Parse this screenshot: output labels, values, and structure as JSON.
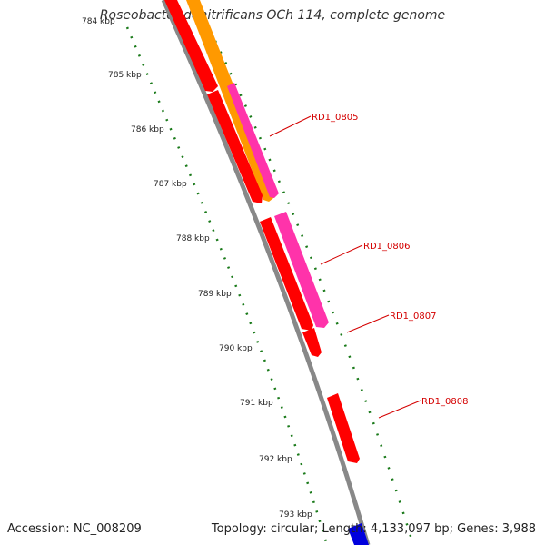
{
  "title": "Roseobacter denitrificans OCh 114, complete genome",
  "accession_text": "Accession: NC_008209",
  "summary_text": "Topology: circular; Length: 4,133,097 bp; Genes: 3,988",
  "ticks": [
    "784 kbp",
    "785 kbp",
    "786 kbp",
    "787 kbp",
    "788 kbp",
    "789 kbp",
    "790 kbp",
    "791 kbp",
    "792 kbp",
    "793 kbp"
  ],
  "gene_labels": [
    "RD1_0805",
    "RD1_0806",
    "RD1_0807",
    "RD1_0808"
  ],
  "colors": {
    "cds": "#ff0000",
    "cds_orange": "#ff9900",
    "cds_magenta": "#ff33aa",
    "backbone": "#888888",
    "gc_track": "#1a7a1a",
    "rna_blue": "#0000dd",
    "label": "#d40000"
  }
}
